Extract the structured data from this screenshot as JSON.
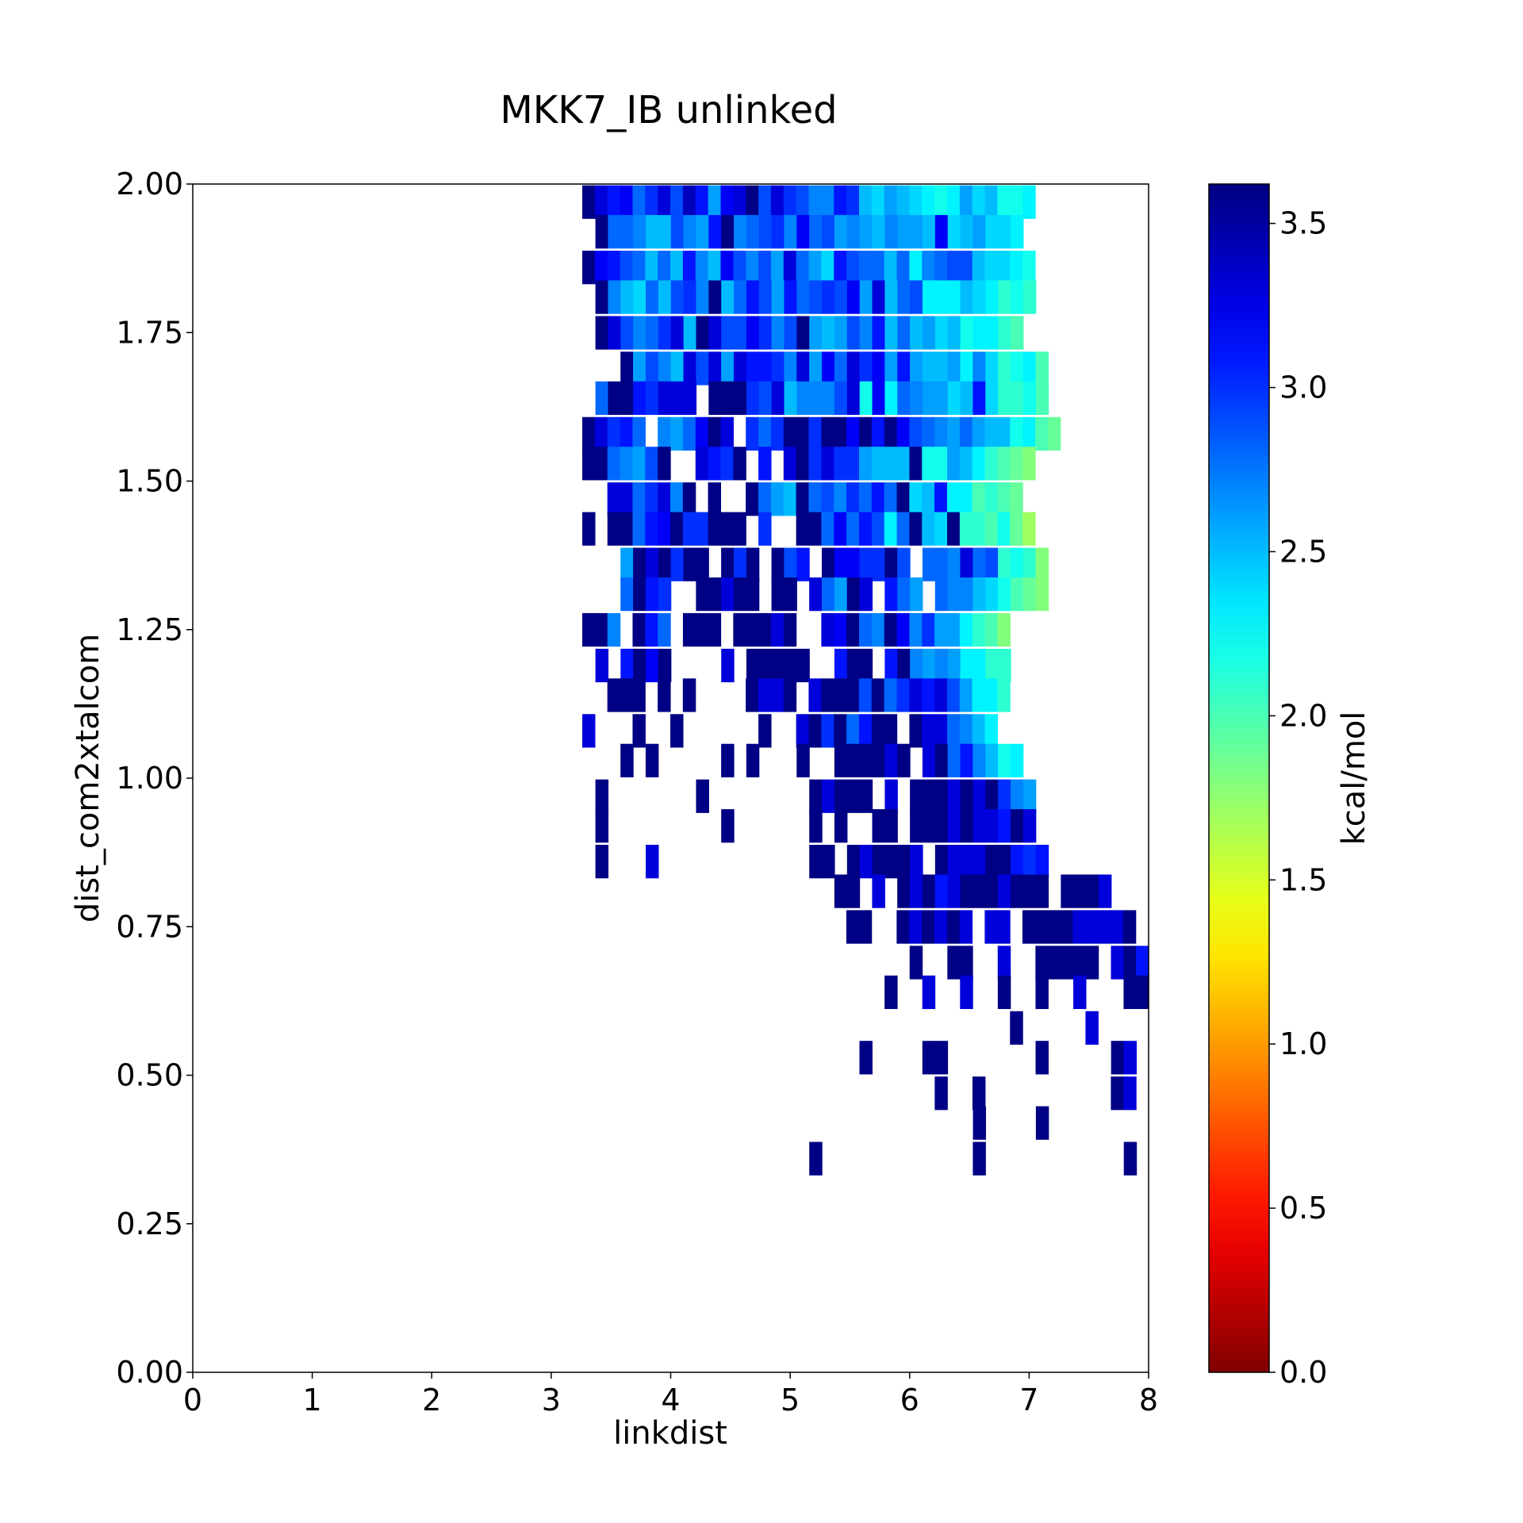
{
  "chart_data": {
    "type": "heatmap",
    "title": "MKK7_IB unlinked",
    "xlabel": "linkdist",
    "ylabel": "dist_com2xtalcom",
    "xlim": [
      0,
      8
    ],
    "ylim": [
      0,
      2
    ],
    "x_ticks": [
      "0",
      "1",
      "2",
      "3",
      "4",
      "5",
      "6",
      "7",
      "8"
    ],
    "y_ticks": [
      "0.00",
      "0.25",
      "0.50",
      "0.75",
      "1.00",
      "1.25",
      "1.50",
      "1.75",
      "2.00"
    ],
    "bin_width_x": 0.1053,
    "bin_height_y": 0.0556,
    "rows": [
      {
        "y": 1.97,
        "x_start": 3.26,
        "values": [
          3.6,
          3.3,
          3.1,
          3.2,
          2.8,
          3.0,
          3.3,
          2.9,
          3.4,
          3.1,
          2.6,
          3.2,
          3.3,
          3.6,
          2.9,
          3.3,
          3.0,
          2.9,
          2.7,
          2.7,
          3.1,
          3.0,
          2.5,
          2.4,
          2.6,
          2.5,
          2.4,
          2.3,
          2.2,
          2.3,
          2.6,
          2.4,
          2.5,
          2.2,
          2.2,
          2.3
        ]
      },
      {
        "y": 1.92,
        "x_start": 3.37,
        "values": [
          3.6,
          2.8,
          2.8,
          2.7,
          2.5,
          2.5,
          2.9,
          2.7,
          2.6,
          3.1,
          3.6,
          2.7,
          2.8,
          2.9,
          3.0,
          2.7,
          3.2,
          2.8,
          2.9,
          2.6,
          2.7,
          2.6,
          2.5,
          2.7,
          2.6,
          2.6,
          2.5,
          3.2,
          2.4,
          2.5,
          2.6,
          2.4,
          2.4,
          2.3
        ]
      },
      {
        "y": 1.86,
        "x_start": 3.26,
        "values": [
          3.6,
          3.2,
          3.1,
          2.9,
          2.8,
          2.5,
          2.8,
          2.5,
          3.1,
          2.7,
          2.5,
          3.2,
          2.9,
          2.7,
          2.9,
          2.6,
          3.3,
          2.8,
          2.6,
          2.4,
          3.1,
          2.9,
          2.8,
          2.8,
          2.5,
          2.8,
          2.3,
          2.7,
          2.8,
          2.9,
          2.9,
          2.5,
          2.4,
          2.4,
          2.3,
          2.2
        ]
      },
      {
        "y": 1.81,
        "x_start": 3.37,
        "values": [
          3.6,
          2.7,
          2.5,
          2.4,
          2.8,
          2.5,
          2.9,
          3.0,
          2.7,
          3.6,
          2.5,
          2.8,
          3.1,
          2.9,
          2.6,
          3.1,
          2.8,
          2.9,
          3.0,
          2.9,
          3.2,
          2.6,
          3.3,
          2.5,
          2.8,
          2.9,
          2.3,
          2.3,
          2.3,
          2.5,
          2.4,
          2.3,
          2.1,
          2.2,
          2.1
        ]
      },
      {
        "y": 1.75,
        "x_start": 3.37,
        "values": [
          3.6,
          3.3,
          2.9,
          2.7,
          2.8,
          3.0,
          3.3,
          2.5,
          3.6,
          3.3,
          2.9,
          2.9,
          3.2,
          3.0,
          2.7,
          2.9,
          3.6,
          2.6,
          2.5,
          2.6,
          2.9,
          2.7,
          3.1,
          2.5,
          2.8,
          2.5,
          2.6,
          2.4,
          2.5,
          2.2,
          2.3,
          2.3,
          2.1,
          2.0
        ]
      },
      {
        "y": 1.69,
        "x_start": 3.58,
        "values": [
          3.6,
          2.6,
          2.9,
          2.7,
          2.5,
          3.3,
          2.9,
          3.3,
          2.6,
          3.3,
          3.1,
          3.1,
          3.0,
          2.7,
          3.3,
          2.6,
          3.2,
          2.8,
          3.3,
          3.0,
          3.2,
          2.6,
          3.1,
          2.6,
          2.5,
          2.5,
          2.6,
          2.3,
          2.7,
          2.4,
          2.1,
          2.2,
          2.3,
          2.0
        ]
      },
      {
        "y": 1.64,
        "x_start": 3.37,
        "values": [
          2.8,
          3.6,
          3.6,
          3.1,
          3.0,
          3.3,
          3.3,
          3.3,
          null,
          3.6,
          3.6,
          3.6,
          3.0,
          2.9,
          3.3,
          2.5,
          2.7,
          2.7,
          2.7,
          2.9,
          3.3,
          2.2,
          3.2,
          2.3,
          2.8,
          2.7,
          2.6,
          2.6,
          2.4,
          2.5,
          3.1,
          2.4,
          2.1,
          2.1,
          2.2,
          2.0
        ]
      },
      {
        "y": 1.58,
        "x_start": 3.26,
        "values": [
          3.6,
          3.3,
          3.0,
          3.1,
          2.8,
          null,
          2.7,
          2.6,
          2.8,
          3.2,
          3.6,
          3.3,
          null,
          3.0,
          2.8,
          3.0,
          3.6,
          3.6,
          3.0,
          3.6,
          3.6,
          3.2,
          3.6,
          3.1,
          3.6,
          3.2,
          2.9,
          2.8,
          2.7,
          2.6,
          2.8,
          2.6,
          2.5,
          2.5,
          2.2,
          2.3,
          2.0,
          1.9
        ]
      },
      {
        "y": 1.53,
        "x_start": 3.26,
        "values": [
          3.6,
          3.6,
          2.8,
          2.7,
          2.6,
          2.9,
          3.6,
          null,
          null,
          3.3,
          3.1,
          3.0,
          3.6,
          null,
          3.1,
          null,
          3.3,
          3.6,
          3.0,
          3.3,
          3.0,
          3.0,
          2.6,
          2.5,
          2.5,
          2.5,
          3.6,
          2.2,
          2.2,
          2.6,
          2.5,
          2.3,
          2.1,
          2.0,
          1.9,
          1.8
        ]
      },
      {
        "y": 1.47,
        "x_start": 3.47,
        "values": [
          3.3,
          3.3,
          2.8,
          3.0,
          3.3,
          2.7,
          3.6,
          null,
          3.6,
          null,
          null,
          3.6,
          2.8,
          2.6,
          2.5,
          3.6,
          2.8,
          2.9,
          2.7,
          3.0,
          2.8,
          3.1,
          2.8,
          3.6,
          2.4,
          2.5,
          3.1,
          2.3,
          2.3,
          2.0,
          2.1,
          2.0,
          1.9
        ]
      },
      {
        "y": 1.42,
        "x_start": 3.26,
        "values": [
          3.6,
          null,
          3.6,
          3.6,
          2.8,
          3.1,
          3.2,
          3.6,
          3.0,
          3.0,
          3.6,
          3.6,
          3.6,
          null,
          3.0,
          null,
          null,
          3.6,
          3.6,
          2.8,
          3.2,
          2.8,
          3.1,
          2.9,
          2.3,
          2.8,
          3.6,
          2.5,
          2.4,
          3.6,
          2.1,
          2.1,
          2.0,
          2.2,
          1.9,
          1.7
        ]
      },
      {
        "y": 1.36,
        "x_start": 3.58,
        "values": [
          2.6,
          3.6,
          3.3,
          3.6,
          3.0,
          3.6,
          3.6,
          null,
          3.6,
          3.0,
          3.6,
          null,
          3.6,
          2.9,
          3.1,
          null,
          3.6,
          3.2,
          3.2,
          3.0,
          3.0,
          3.6,
          2.9,
          null,
          2.8,
          2.8,
          2.7,
          3.3,
          2.8,
          2.9,
          2.1,
          2.2,
          2.1,
          1.8
        ]
      },
      {
        "y": 1.31,
        "x_start": 3.58,
        "values": [
          2.8,
          3.6,
          3.1,
          3.0,
          null,
          null,
          3.6,
          3.6,
          3.3,
          3.6,
          3.6,
          null,
          3.6,
          3.6,
          null,
          3.3,
          2.8,
          2.6,
          3.6,
          3.3,
          null,
          3.1,
          2.8,
          2.6,
          null,
          2.8,
          2.7,
          2.7,
          2.5,
          2.4,
          2.2,
          2.0,
          1.9,
          1.8
        ]
      },
      {
        "y": 1.25,
        "x_start": 3.26,
        "values": [
          3.6,
          3.6,
          2.7,
          null,
          3.6,
          3.1,
          2.8,
          null,
          3.6,
          3.6,
          3.6,
          null,
          3.6,
          3.6,
          3.6,
          3.3,
          3.6,
          null,
          null,
          3.3,
          3.2,
          3.6,
          2.8,
          2.7,
          3.6,
          3.2,
          2.7,
          3.0,
          2.6,
          2.6,
          2.3,
          2.1,
          2.0,
          1.8
        ]
      },
      {
        "y": 1.19,
        "x_start": 3.37,
        "values": [
          3.3,
          null,
          3.1,
          3.6,
          3.2,
          3.6,
          null,
          null,
          null,
          null,
          3.3,
          null,
          3.6,
          3.6,
          3.6,
          3.6,
          3.6,
          null,
          null,
          3.1,
          3.6,
          3.6,
          null,
          3.1,
          3.6,
          2.7,
          2.6,
          2.7,
          2.6,
          2.3,
          2.3,
          2.1,
          2.1
        ]
      },
      {
        "y": 1.14,
        "x_start": 3.47,
        "values": [
          3.6,
          3.6,
          3.6,
          null,
          3.6,
          null,
          3.6,
          null,
          null,
          null,
          null,
          3.6,
          3.3,
          3.3,
          3.6,
          null,
          3.3,
          3.6,
          3.6,
          3.6,
          2.9,
          3.6,
          2.8,
          3.0,
          3.3,
          3.1,
          3.3,
          2.9,
          2.6,
          2.3,
          2.3,
          2.1
        ]
      },
      {
        "y": 1.08,
        "x_start": 3.26,
        "values": [
          3.3,
          null,
          null,
          null,
          3.6,
          null,
          null,
          3.6,
          null,
          null,
          null,
          null,
          null,
          null,
          3.6,
          null,
          null,
          3.3,
          3.6,
          3.0,
          3.6,
          2.8,
          3.1,
          3.6,
          3.6,
          null,
          3.6,
          3.3,
          3.3,
          2.8,
          2.7,
          2.5,
          2.3
        ]
      },
      {
        "y": 1.03,
        "x_start": 3.58,
        "values": [
          3.6,
          null,
          3.6,
          null,
          null,
          null,
          null,
          null,
          3.6,
          null,
          3.6,
          null,
          null,
          null,
          3.6,
          null,
          null,
          3.6,
          3.6,
          3.6,
          3.6,
          3.3,
          3.6,
          null,
          3.3,
          3.6,
          2.8,
          3.1,
          2.7,
          2.5,
          2.2,
          2.3
        ]
      },
      {
        "y": 0.97,
        "x_start": 3.37,
        "values": [
          3.6,
          null,
          null,
          null,
          null,
          null,
          null,
          null,
          3.6,
          null,
          null,
          null,
          null,
          null,
          null,
          null,
          null,
          3.6,
          3.3,
          3.6,
          3.6,
          3.6,
          null,
          3.3,
          null,
          3.6,
          3.6,
          3.6,
          3.3,
          3.6,
          3.3,
          3.6,
          3.0,
          2.7,
          2.6
        ]
      },
      {
        "y": 0.92,
        "x_start": 3.37,
        "values": [
          3.6,
          null,
          null,
          null,
          null,
          null,
          null,
          null,
          null,
          null,
          3.6,
          null,
          null,
          null,
          null,
          null,
          null,
          3.6,
          null,
          3.6,
          null,
          null,
          3.6,
          3.6,
          null,
          3.6,
          3.6,
          3.6,
          3.3,
          3.6,
          3.3,
          3.3,
          3.1,
          3.6,
          3.3
        ]
      },
      {
        "y": 0.86,
        "x_start": 3.37,
        "values": [
          3.6,
          null,
          null,
          null,
          3.3,
          null,
          null,
          null,
          null,
          null,
          null,
          null,
          null,
          null,
          null,
          null,
          null,
          3.6,
          3.6,
          null,
          3.6,
          3.3,
          3.6,
          3.6,
          3.6,
          3.3,
          null,
          3.6,
          3.3,
          3.3,
          3.3,
          3.6,
          3.6,
          3.1,
          3.0,
          3.1
        ]
      },
      {
        "y": 0.81,
        "x_start": 5.37,
        "values": [
          3.6,
          3.6,
          null,
          3.3,
          null,
          3.6,
          3.3,
          3.6,
          3.1,
          3.3,
          3.6,
          3.6,
          3.6,
          3.3,
          3.6,
          3.6,
          3.6,
          null,
          3.6,
          3.6,
          3.6,
          3.3
        ]
      },
      {
        "y": 0.75,
        "x_start": 5.47,
        "values": [
          3.6,
          3.6,
          null,
          null,
          3.6,
          3.3,
          3.6,
          3.3,
          3.6,
          3.3,
          null,
          3.3,
          3.3,
          null,
          3.6,
          3.6,
          3.6,
          3.6,
          3.3,
          3.3,
          3.3,
          3.3,
          3.6
        ]
      },
      {
        "y": 0.69,
        "x_start": 6.0,
        "values": [
          3.6,
          null,
          null,
          3.6,
          3.6,
          null,
          null,
          3.3,
          null,
          null,
          3.6,
          3.6,
          3.6,
          3.6,
          3.6,
          null,
          3.3,
          3.6,
          3.1
        ]
      },
      {
        "y": 0.64,
        "x_start": 5.79,
        "values": [
          3.6,
          null,
          null,
          3.3,
          null,
          null,
          3.3,
          null,
          null,
          3.6,
          null,
          null,
          3.6,
          null,
          null,
          3.3,
          null,
          null,
          null,
          3.6,
          3.6,
          3.6
        ]
      },
      {
        "y": 0.58,
        "x_start": 6.84,
        "values": [
          3.6,
          null,
          null,
          null,
          null,
          null,
          3.3,
          null,
          null,
          null,
          null,
          3.1
        ]
      },
      {
        "y": 0.53,
        "x_start": 5.58,
        "values": [
          3.6,
          null,
          null,
          null,
          null,
          3.6,
          3.6,
          null,
          null,
          null,
          null,
          null,
          null,
          null,
          3.6,
          null,
          null,
          null,
          null,
          null,
          3.6,
          3.3
        ]
      },
      {
        "y": 0.47,
        "x_start": 6.21,
        "values": [
          3.6,
          null,
          null,
          3.6,
          null,
          null,
          null,
          null,
          null,
          null,
          null,
          null,
          null,
          null,
          3.6,
          3.3
        ]
      },
      {
        "y": 0.42,
        "x_start": 6.53,
        "values": [
          3.6,
          null,
          null,
          null,
          null,
          3.6
        ]
      },
      {
        "y": 0.36,
        "x_start": 5.16,
        "values": [
          3.6,
          null,
          null,
          null,
          null,
          null,
          null,
          null,
          null,
          null,
          null,
          null,
          null,
          3.6,
          null,
          null,
          null,
          null,
          null,
          null,
          null,
          null,
          null,
          null,
          null,
          3.6
        ]
      }
    ],
    "colorbar": {
      "label": "kcal/mol",
      "colormap": "jet_r",
      "vmin": 0.0,
      "vmax": 3.62,
      "ticks": [
        "0.0",
        "0.5",
        "1.0",
        "1.5",
        "2.0",
        "2.5",
        "3.0",
        "3.5"
      ]
    }
  }
}
